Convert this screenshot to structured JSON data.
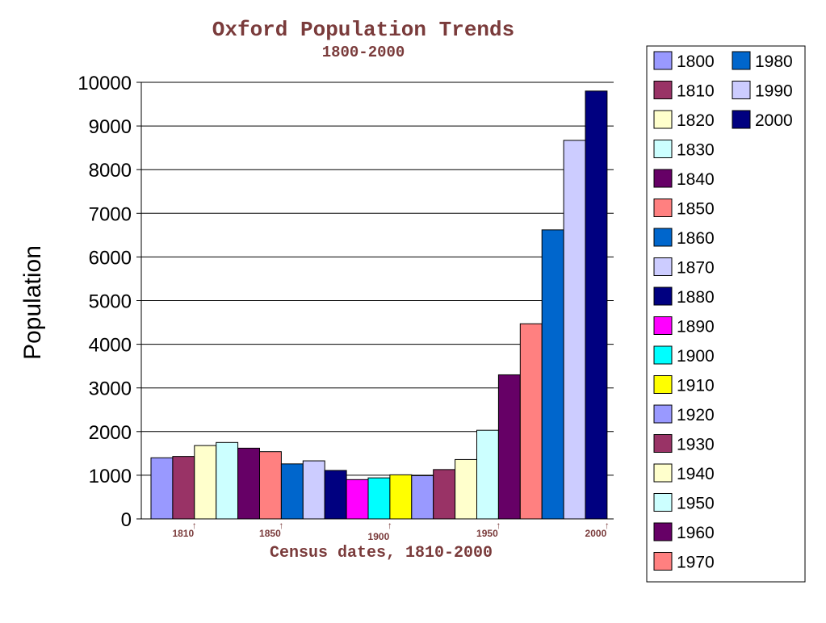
{
  "chart_data": {
    "type": "bar",
    "title": "Oxford Population Trends",
    "subtitle": "1800-2000",
    "xlabel": "Census dates, 1810-2000",
    "ylabel": "Population",
    "ylim": [
      0,
      10000
    ],
    "yticks": [
      0,
      1000,
      2000,
      3000,
      4000,
      5000,
      6000,
      7000,
      8000,
      9000,
      10000
    ],
    "x_annotations": [
      "1810",
      "1850",
      "1900",
      "1950",
      "2000"
    ],
    "x_annotation_marker": "↑",
    "grid": true,
    "legend_position": "right",
    "series": [
      {
        "name": "1800",
        "value": 1400,
        "color": "#9999ff"
      },
      {
        "name": "1810",
        "value": 1430,
        "color": "#993366"
      },
      {
        "name": "1820",
        "value": 1680,
        "color": "#ffffcc"
      },
      {
        "name": "1830",
        "value": 1750,
        "color": "#ccffff"
      },
      {
        "name": "1840",
        "value": 1620,
        "color": "#660066"
      },
      {
        "name": "1850",
        "value": 1540,
        "color": "#ff8080"
      },
      {
        "name": "1860",
        "value": 1260,
        "color": "#0066cc"
      },
      {
        "name": "1870",
        "value": 1330,
        "color": "#ccccff"
      },
      {
        "name": "1880",
        "value": 1110,
        "color": "#000080"
      },
      {
        "name": "1890",
        "value": 900,
        "color": "#ff00ff"
      },
      {
        "name": "1900",
        "value": 940,
        "color": "#00ffff"
      },
      {
        "name": "1910",
        "value": 1010,
        "color": "#ffff00"
      },
      {
        "name": "1920",
        "value": 990,
        "color": "#9999ff"
      },
      {
        "name": "1930",
        "value": 1130,
        "color": "#993366"
      },
      {
        "name": "1940",
        "value": 1360,
        "color": "#ffffcc"
      },
      {
        "name": "1950",
        "value": 2030,
        "color": "#ccffff"
      },
      {
        "name": "1960",
        "value": 3300,
        "color": "#660066"
      },
      {
        "name": "1970",
        "value": 4470,
        "color": "#ff8080"
      },
      {
        "name": "1980",
        "value": 6620,
        "color": "#0066cc"
      },
      {
        "name": "1990",
        "value": 8670,
        "color": "#ccccff"
      },
      {
        "name": "2000",
        "value": 9800,
        "color": "#000080"
      }
    ],
    "title_color": "#7a3b3b"
  }
}
